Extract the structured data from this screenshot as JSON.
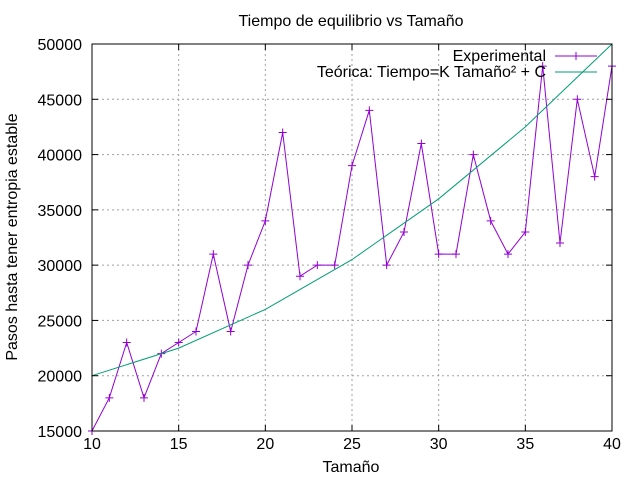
{
  "chart_data": {
    "type": "line",
    "title": "Tiempo de equilibrio vs Tamaño",
    "xlabel": "Tamaño",
    "ylabel": "Pasos hasta tener entropia estable",
    "xlim": [
      10,
      40
    ],
    "ylim": [
      15000,
      50000
    ],
    "x_ticks": [
      10,
      15,
      20,
      25,
      30,
      35,
      40
    ],
    "y_ticks": [
      15000,
      20000,
      25000,
      30000,
      35000,
      40000,
      45000,
      50000
    ],
    "grid": true,
    "legend_position": "top-right",
    "series": [
      {
        "name": "Experimental",
        "color": "#9400d3",
        "marker": "plus",
        "x": [
          10,
          11,
          12,
          13,
          14,
          15,
          16,
          17,
          18,
          19,
          20,
          21,
          22,
          23,
          24,
          25,
          26,
          27,
          28,
          29,
          30,
          31,
          32,
          33,
          34,
          35,
          36,
          37,
          38,
          39,
          40
        ],
        "y": [
          15000,
          18000,
          23000,
          18000,
          22000,
          23000,
          24000,
          31000,
          24000,
          30000,
          34000,
          42000,
          29000,
          30000,
          30000,
          39000,
          44000,
          30000,
          33000,
          41000,
          31000,
          31000,
          40000,
          34000,
          31000,
          33000,
          48000,
          32000,
          45000,
          38000,
          48000
        ]
      },
      {
        "name": "Teórica: Tiempo=K Tamaño² + C",
        "color": "#009e73",
        "marker": "none",
        "x": [
          10,
          15,
          20,
          25,
          30,
          35,
          40
        ],
        "y": [
          20000,
          22500,
          26000,
          30500,
          36000,
          42500,
          50000
        ]
      }
    ]
  }
}
